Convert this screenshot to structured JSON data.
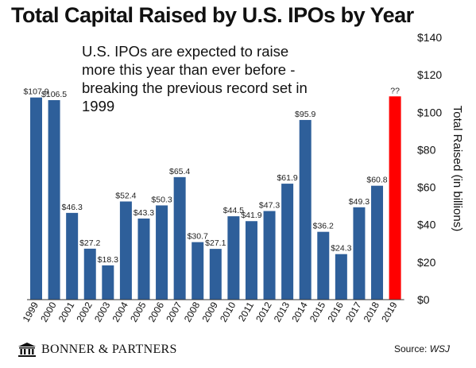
{
  "colors": {
    "bar": "#2e5f9a",
    "highlight": "#ff0000",
    "axis": "#333333"
  },
  "callout": "U.S. IPOs are expected to raise more this year than ever before - breaking the previous record set in 1999",
  "footer": {
    "brand": "BONNER & PARTNERS",
    "source_label": "Source:",
    "source_name": "WSJ",
    "logo_icon": "bank-building-icon"
  },
  "chart_data": {
    "type": "bar",
    "title": "Total Capital Raised by U.S. IPOs by Year",
    "ylabel": "Total Raised (in billions)",
    "xlabel": "",
    "ylim": [
      0,
      140
    ],
    "yticks": [
      0,
      20,
      40,
      60,
      80,
      100,
      120,
      140
    ],
    "ytick_labels": [
      "$0",
      "$20",
      "$40",
      "$60",
      "$80",
      "$100",
      "$120",
      "$140"
    ],
    "grid": false,
    "categories": [
      "1999",
      "2000",
      "2001",
      "2002",
      "2003",
      "2004",
      "2005",
      "2006",
      "2007",
      "2008",
      "2009",
      "2010",
      "2011",
      "2012",
      "2013",
      "2014",
      "2015",
      "2016",
      "2017",
      "2018",
      "2019"
    ],
    "values": [
      107.9,
      106.5,
      46.3,
      27.2,
      18.3,
      52.4,
      43.3,
      50.3,
      65.4,
      30.7,
      27.1,
      44.5,
      41.9,
      47.3,
      61.9,
      95.9,
      36.2,
      24.3,
      49.3,
      60.8,
      108.5
    ],
    "labels": [
      "$107.9",
      "$106.5",
      "$46.3",
      "$27.2",
      "$18.3",
      "$52.4",
      "$43.3",
      "$50.3",
      "$65.4",
      "$30.7",
      "$27.1",
      "$44.5",
      "$41.9",
      "$47.3",
      "$61.9",
      "$95.9",
      "$36.2",
      "$24.3",
      "$49.3",
      "$60.8",
      "??"
    ],
    "highlight_index": 20
  }
}
